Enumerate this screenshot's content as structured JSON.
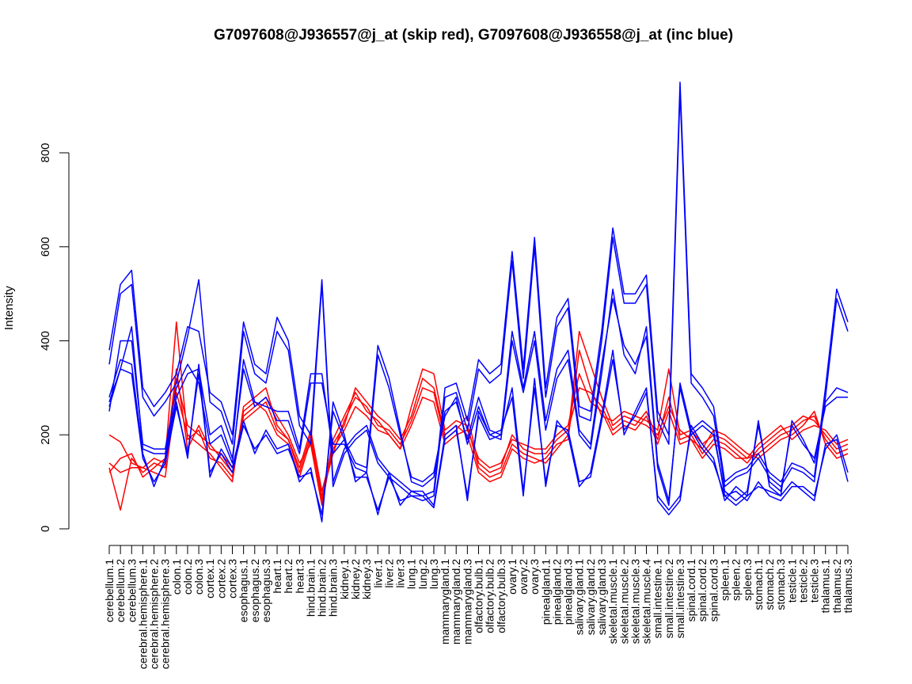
{
  "chart_data": {
    "type": "line",
    "title": "G7097608@J936557@j_at (skip red), G7097608@J936558@j_at (inc blue)",
    "xlabel": "",
    "ylabel": "Intensity",
    "yticks": [
      0,
      200,
      400,
      600,
      800
    ],
    "grid": false,
    "legend": "none",
    "colors": {
      "skip": "#ff0000",
      "inc": "#0000ff"
    },
    "categories": [
      "cerebellum.1",
      "cerebellum.2",
      "cerebellum.3",
      "cerebral.hemisphere.1",
      "cerebral.hemisphere.2",
      "cerebral.hemisphere.3",
      "colon.1",
      "colon.2",
      "colon.3",
      "cortex.1",
      "cortex.2",
      "cortex.3",
      "esophagus.1",
      "esophagus.2",
      "esophagus.3",
      "heart.1",
      "heart.2",
      "heart.3",
      "hind.brain.1",
      "hind.brain.2",
      "hind.brain.3",
      "kidney.1",
      "kidney.2",
      "kidney.3",
      "liver.1",
      "liver.2",
      "liver.3",
      "lung.1",
      "lung.2",
      "lung.3",
      "mammarygland.1",
      "mammarygland.2",
      "mammarygland.3",
      "olfactory.bulb.1",
      "olfactory.bulb.2",
      "olfactory.bulb.3",
      "ovary.1",
      "ovary.2",
      "ovary.3",
      "pinealgland.1",
      "pinealgland.2",
      "pinealgland.3",
      "salivary.gland.1",
      "salivary.gland.2",
      "salivary.gland.3",
      "skeletal.muscle.1",
      "skeletal.muscle.2",
      "skeletal.muscle.3",
      "skeletal.muscle.4",
      "small.intestine.1",
      "small.intestine.2",
      "small.intestine.3",
      "spinal.cord.1",
      "spinal.cord.2",
      "spinal.cord.3",
      "spleen.1",
      "spleen.2",
      "spleen.3",
      "stomach.1",
      "stomach.2",
      "stomach.3",
      "testicle.1",
      "testicle.2",
      "testicle.3",
      "thalamus.1",
      "thalamus.2",
      "thalamus.3"
    ],
    "series": [
      {
        "group": "skip",
        "values": [
          200,
          185,
          140,
          130,
          120,
          110,
          290,
          200,
          180,
          160,
          130,
          100,
          260,
          280,
          300,
          220,
          190,
          120,
          200,
          60,
          190,
          240,
          290,
          250,
          230,
          200,
          170,
          260,
          340,
          330,
          210,
          230,
          220,
          130,
          110,
          120,
          180,
          160,
          150,
          140,
          170,
          200,
          420,
          350,
          280,
          220,
          240,
          230,
          220,
          200,
          260,
          210,
          190,
          170,
          210,
          200,
          180,
          160,
          150,
          170,
          190,
          200,
          220,
          250,
          180,
          150,
          160
        ]
      },
      {
        "group": "skip",
        "values": [
          130,
          40,
          150,
          120,
          140,
          130,
          320,
          220,
          200,
          180,
          150,
          120,
          240,
          260,
          280,
          240,
          200,
          140,
          180,
          50,
          180,
          220,
          300,
          270,
          240,
          220,
          190,
          240,
          320,
          300,
          200,
          220,
          200,
          120,
          100,
          110,
          170,
          150,
          140,
          150,
          180,
          190,
          380,
          300,
          240,
          230,
          250,
          240,
          230,
          210,
          340,
          200,
          210,
          180,
          200,
          190,
          170,
          150,
          160,
          180,
          200,
          210,
          230,
          240,
          190,
          160,
          170
        ]
      },
      {
        "group": "skip",
        "values": [
          120,
          150,
          160,
          110,
          130,
          150,
          440,
          190,
          210,
          150,
          140,
          110,
          250,
          270,
          250,
          200,
          180,
          110,
          190,
          70,
          160,
          230,
          280,
          260,
          220,
          210,
          180,
          230,
          300,
          290,
          190,
          210,
          240,
          140,
          120,
          130,
          200,
          170,
          160,
          160,
          190,
          210,
          300,
          290,
          260,
          210,
          230,
          220,
          250,
          190,
          280,
          190,
          200,
          160,
          190,
          180,
          160,
          140,
          170,
          190,
          210,
          220,
          240,
          230,
          200,
          170,
          180
        ]
      },
      {
        "group": "skip",
        "values": [
          140,
          120,
          130,
          130,
          150,
          140,
          340,
          170,
          220,
          170,
          160,
          130,
          230,
          250,
          270,
          210,
          190,
          130,
          210,
          80,
          170,
          210,
          260,
          240,
          210,
          200,
          170,
          220,
          280,
          270,
          180,
          200,
          210,
          150,
          130,
          140,
          190,
          180,
          170,
          170,
          200,
          220,
          330,
          270,
          250,
          200,
          220,
          210,
          240,
          180,
          250,
          180,
          190,
          150,
          180,
          170,
          150,
          150,
          180,
          200,
          220,
          190,
          210,
          220,
          210,
          180,
          190
        ]
      },
      {
        "group": "inc",
        "values": [
          380,
          520,
          550,
          300,
          260,
          290,
          330,
          430,
          420,
          290,
          270,
          200,
          440,
          350,
          330,
          450,
          400,
          240,
          200,
          530,
          100,
          170,
          200,
          220,
          150,
          120,
          100,
          80,
          70,
          80,
          300,
          310,
          230,
          360,
          330,
          350,
          590,
          340,
          620,
          300,
          450,
          490,
          260,
          250,
          420,
          640,
          500,
          500,
          540,
          250,
          200,
          950,
          330,
          300,
          260,
          100,
          120,
          130,
          160,
          120,
          100,
          140,
          130,
          110,
          300,
          510,
          440
        ]
      },
      {
        "group": "inc",
        "values": [
          350,
          500,
          520,
          280,
          240,
          270,
          310,
          410,
          530,
          270,
          250,
          180,
          420,
          330,
          310,
          420,
          380,
          220,
          180,
          520,
          90,
          160,
          190,
          210,
          140,
          110,
          90,
          70,
          60,
          70,
          280,
          290,
          210,
          340,
          310,
          330,
          570,
          320,
          600,
          280,
          430,
          470,
          240,
          230,
          400,
          620,
          480,
          480,
          520,
          230,
          180,
          930,
          310,
          280,
          240,
          90,
          110,
          120,
          150,
          110,
          90,
          130,
          120,
          100,
          280,
          490,
          420
        ]
      },
      {
        "group": "inc",
        "values": [
          260,
          340,
          430,
          170,
          160,
          160,
          280,
          330,
          340,
          200,
          220,
          150,
          340,
          260,
          280,
          230,
          230,
          160,
          310,
          310,
          180,
          180,
          130,
          120,
          370,
          300,
          200,
          110,
          100,
          120,
          240,
          280,
          180,
          260,
          200,
          190,
          400,
          290,
          400,
          210,
          320,
          360,
          200,
          170,
          330,
          510,
          370,
          330,
          430,
          140,
          60,
          300,
          200,
          220,
          200,
          80,
          60,
          80,
          220,
          100,
          80,
          220,
          180,
          150,
          260,
          280,
          280
        ]
      },
      {
        "group": "inc",
        "values": [
          250,
          400,
          400,
          180,
          170,
          170,
          300,
          350,
          310,
          180,
          200,
          140,
          360,
          270,
          260,
          250,
          250,
          170,
          330,
          330,
          160,
          190,
          140,
          130,
          390,
          320,
          210,
          100,
          90,
          110,
          250,
          270,
          190,
          280,
          210,
          200,
          420,
          300,
          420,
          230,
          340,
          380,
          210,
          180,
          350,
          490,
          390,
          350,
          410,
          130,
          50,
          310,
          210,
          230,
          210,
          70,
          50,
          70,
          230,
          90,
          70,
          230,
          190,
          140,
          270,
          300,
          290
        ]
      },
      {
        "group": "inc",
        "values": [
          280,
          360,
          350,
          160,
          90,
          150,
          270,
          150,
          350,
          110,
          170,
          130,
          230,
          160,
          210,
          170,
          180,
          100,
          130,
          15,
          270,
          200,
          100,
          120,
          30,
          120,
          50,
          80,
          80,
          50,
          200,
          220,
          60,
          250,
          200,
          210,
          280,
          70,
          320,
          90,
          230,
          200,
          90,
          120,
          240,
          380,
          200,
          250,
          300,
          60,
          30,
          60,
          220,
          180,
          150,
          60,
          90,
          70,
          90,
          80,
          70,
          100,
          80,
          60,
          180,
          190,
          100
        ]
      },
      {
        "group": "inc",
        "values": [
          270,
          340,
          330,
          150,
          100,
          140,
          260,
          160,
          330,
          120,
          160,
          120,
          220,
          170,
          200,
          160,
          170,
          110,
          120,
          30,
          250,
          190,
          110,
          110,
          40,
          110,
          60,
          70,
          70,
          45,
          190,
          210,
          70,
          240,
          190,
          200,
          300,
          80,
          300,
          100,
          220,
          210,
          100,
          110,
          230,
          360,
          210,
          240,
          290,
          70,
          40,
          70,
          210,
          170,
          140,
          70,
          80,
          60,
          100,
          70,
          60,
          90,
          90,
          70,
          170,
          200,
          120
        ]
      }
    ]
  }
}
